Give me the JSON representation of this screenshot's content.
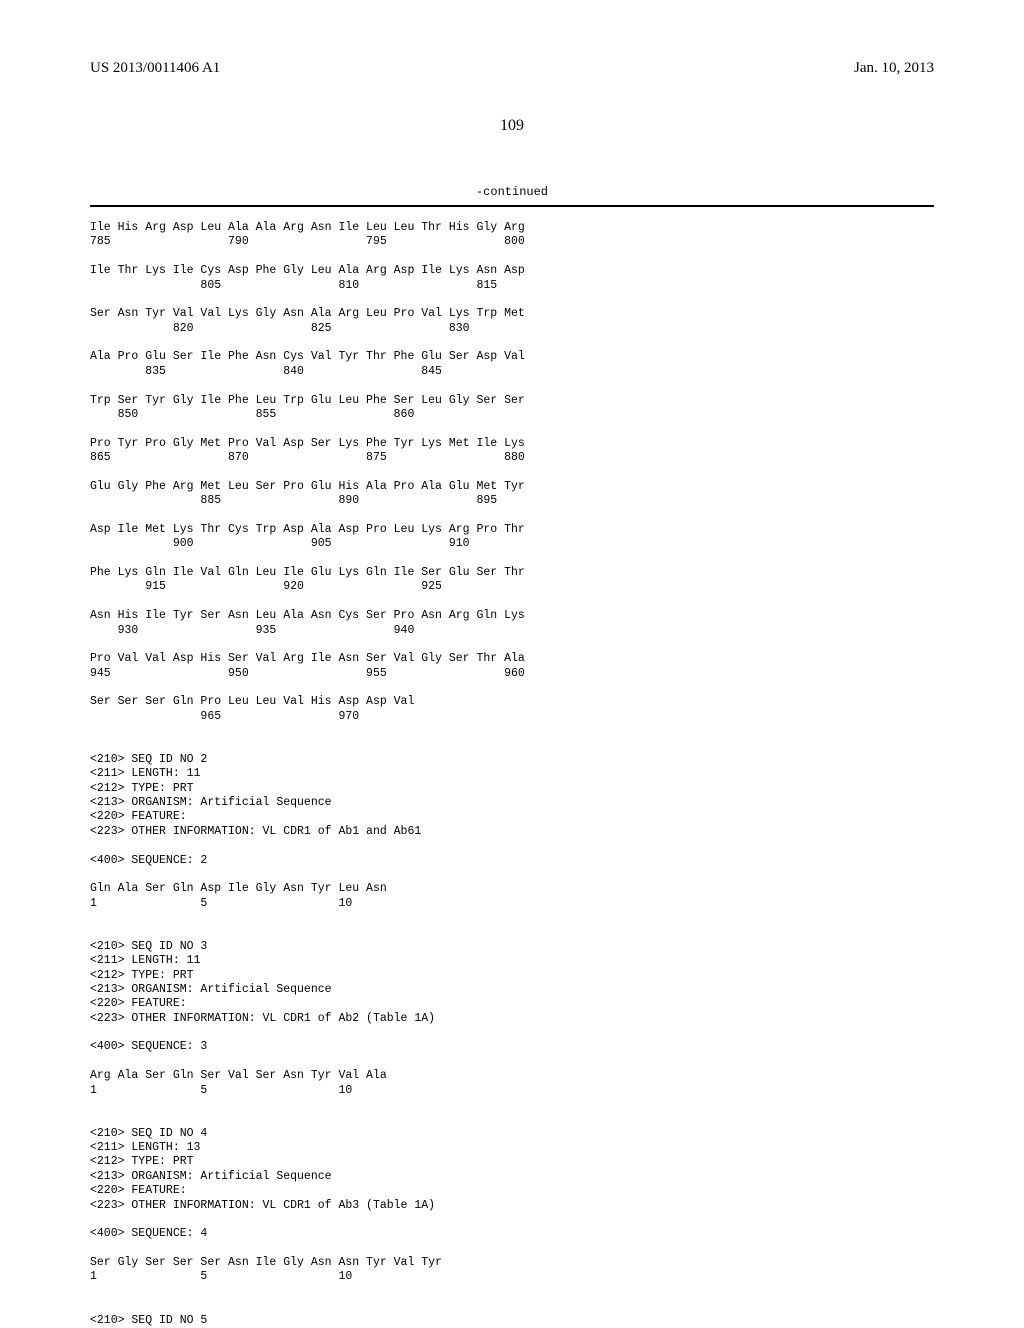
{
  "header": {
    "pub_no": "US 2013/0011406 A1",
    "pub_date": "Jan. 10, 2013"
  },
  "page_number": "109",
  "continued_label": "-continued",
  "sequence_text": "Ile His Arg Asp Leu Ala Ala Arg Asn Ile Leu Leu Thr His Gly Arg\n785                 790                 795                 800\n\nIle Thr Lys Ile Cys Asp Phe Gly Leu Ala Arg Asp Ile Lys Asn Asp\n                805                 810                 815\n\nSer Asn Tyr Val Val Lys Gly Asn Ala Arg Leu Pro Val Lys Trp Met\n            820                 825                 830\n\nAla Pro Glu Ser Ile Phe Asn Cys Val Tyr Thr Phe Glu Ser Asp Val\n        835                 840                 845\n\nTrp Ser Tyr Gly Ile Phe Leu Trp Glu Leu Phe Ser Leu Gly Ser Ser\n    850                 855                 860\n\nPro Tyr Pro Gly Met Pro Val Asp Ser Lys Phe Tyr Lys Met Ile Lys\n865                 870                 875                 880\n\nGlu Gly Phe Arg Met Leu Ser Pro Glu His Ala Pro Ala Glu Met Tyr\n                885                 890                 895\n\nAsp Ile Met Lys Thr Cys Trp Asp Ala Asp Pro Leu Lys Arg Pro Thr\n            900                 905                 910\n\nPhe Lys Gln Ile Val Gln Leu Ile Glu Lys Gln Ile Ser Glu Ser Thr\n        915                 920                 925\n\nAsn His Ile Tyr Ser Asn Leu Ala Asn Cys Ser Pro Asn Arg Gln Lys\n    930                 935                 940\n\nPro Val Val Asp His Ser Val Arg Ile Asn Ser Val Gly Ser Thr Ala\n945                 950                 955                 960\n\nSer Ser Ser Gln Pro Leu Leu Val His Asp Asp Val\n                965                 970\n\n\n<210> SEQ ID NO 2\n<211> LENGTH: 11\n<212> TYPE: PRT\n<213> ORGANISM: Artificial Sequence\n<220> FEATURE:\n<223> OTHER INFORMATION: VL CDR1 of Ab1 and Ab61\n\n<400> SEQUENCE: 2\n\nGln Ala Ser Gln Asp Ile Gly Asn Tyr Leu Asn\n1               5                   10\n\n\n<210> SEQ ID NO 3\n<211> LENGTH: 11\n<212> TYPE: PRT\n<213> ORGANISM: Artificial Sequence\n<220> FEATURE:\n<223> OTHER INFORMATION: VL CDR1 of Ab2 (Table 1A)\n\n<400> SEQUENCE: 3\n\nArg Ala Ser Gln Ser Val Ser Asn Tyr Val Ala\n1               5                   10\n\n\n<210> SEQ ID NO 4\n<211> LENGTH: 13\n<212> TYPE: PRT\n<213> ORGANISM: Artificial Sequence\n<220> FEATURE:\n<223> OTHER INFORMATION: VL CDR1 of Ab3 (Table 1A)\n\n<400> SEQUENCE: 4\n\nSer Gly Ser Ser Ser Asn Ile Gly Asn Asn Tyr Val Tyr\n1               5                   10\n\n\n<210> SEQ ID NO 5"
}
